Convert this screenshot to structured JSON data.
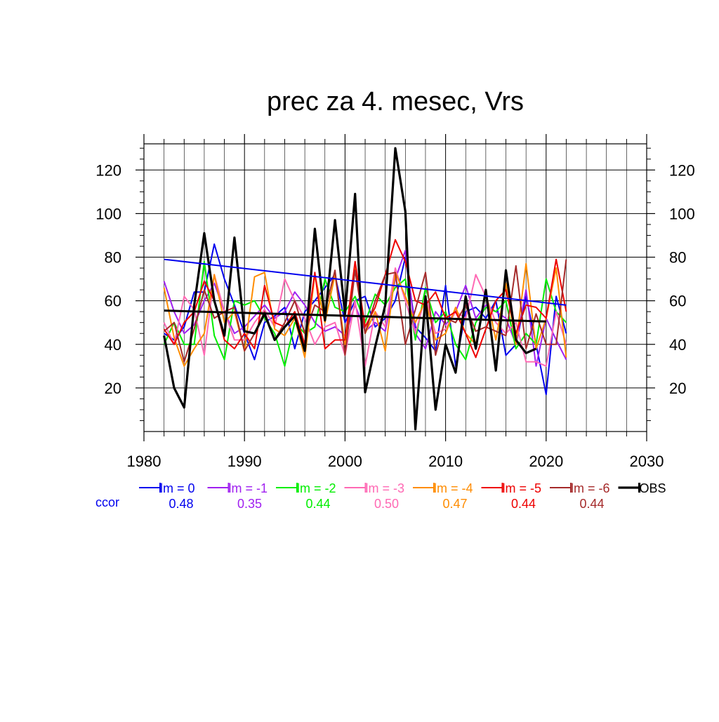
{
  "chart_data": {
    "type": "line",
    "title": "prec za 4. mesec, Vrs",
    "xlim": [
      1980,
      2030
    ],
    "ylim": [
      0,
      132
    ],
    "x_ticks": [
      1980,
      1990,
      2000,
      2010,
      2020,
      2030
    ],
    "y_ticks": [
      20,
      40,
      60,
      80,
      100,
      120
    ],
    "grid": true,
    "legend_position": "bottom",
    "ccor_label": "ccor",
    "series": [
      {
        "name": "lm = 0",
        "color": "#0000ee",
        "ccor": "0.48",
        "x": [
          1982,
          1983,
          1984,
          1985,
          1986,
          1987,
          1988,
          1989,
          1990,
          1991,
          1992,
          1993,
          1994,
          1995,
          1996,
          1997,
          1998,
          1999,
          2000,
          2001,
          2002,
          2003,
          2004,
          2005,
          2006,
          2007,
          2008,
          2009,
          2010,
          2011,
          2012,
          2013,
          2014,
          2015,
          2016,
          2017,
          2018,
          2019,
          2020,
          2021,
          2022
        ],
        "values": [
          45,
          42,
          48,
          64,
          64,
          86,
          70,
          58,
          45,
          33,
          50,
          53,
          57,
          38,
          55,
          60,
          66,
          72,
          50,
          60,
          62,
          48,
          52,
          60,
          80,
          48,
          43,
          37,
          67,
          30,
          55,
          57,
          52,
          60,
          35,
          40,
          62,
          40,
          17,
          62,
          45
        ]
      },
      {
        "name": "lm = -1",
        "color": "#a020f0",
        "ccor": "0.35",
        "x": [
          1982,
          1983,
          1984,
          1985,
          1986,
          1987,
          1988,
          1989,
          1990,
          1991,
          1992,
          1993,
          1994,
          1995,
          1996,
          1997,
          1998,
          1999,
          2000,
          2001,
          2002,
          2003,
          2004,
          2005,
          2006,
          2007,
          2008,
          2009,
          2010,
          2011,
          2012,
          2013,
          2014,
          2015,
          2016,
          2017,
          2018,
          2019,
          2020,
          2021,
          2022
        ],
        "values": [
          69,
          55,
          45,
          49,
          60,
          68,
          55,
          45,
          48,
          53,
          58,
          52,
          55,
          64,
          58,
          50,
          46,
          48,
          44,
          58,
          46,
          50,
          46,
          70,
          83,
          45,
          38,
          55,
          49,
          55,
          67,
          52,
          58,
          55,
          52,
          40,
          65,
          30,
          52,
          42,
          33
        ]
      },
      {
        "name": "lm = -2",
        "color": "#00ee00",
        "ccor": "0.44",
        "x": [
          1982,
          1983,
          1984,
          1985,
          1986,
          1987,
          1988,
          1989,
          1990,
          1991,
          1992,
          1993,
          1994,
          1995,
          1996,
          1997,
          1998,
          1999,
          2000,
          2001,
          2002,
          2003,
          2004,
          2005,
          2006,
          2007,
          2008,
          2009,
          2010,
          2011,
          2012,
          2013,
          2014,
          2015,
          2016,
          2017,
          2018,
          2019,
          2020,
          2021,
          2022
        ],
        "values": [
          40,
          50,
          40,
          40,
          78,
          44,
          33,
          60,
          58,
          60,
          52,
          45,
          30,
          50,
          45,
          48,
          70,
          57,
          55,
          62,
          50,
          63,
          58,
          66,
          70,
          42,
          66,
          50,
          55,
          40,
          33,
          50,
          57,
          55,
          60,
          38,
          45,
          40,
          70,
          55,
          50
        ]
      },
      {
        "name": "lm = -3",
        "color": "#ff69b4",
        "ccor": "0.50",
        "x": [
          1982,
          1983,
          1984,
          1985,
          1986,
          1987,
          1988,
          1989,
          1990,
          1991,
          1992,
          1993,
          1994,
          1995,
          1996,
          1997,
          1998,
          1999,
          2000,
          2001,
          2002,
          2003,
          2004,
          2005,
          2006,
          2007,
          2008,
          2009,
          2010,
          2011,
          2012,
          2013,
          2014,
          2015,
          2016,
          2017,
          2018,
          2019,
          2020,
          2021,
          2022
        ],
        "values": [
          50,
          40,
          62,
          56,
          35,
          72,
          55,
          42,
          42,
          50,
          56,
          48,
          70,
          60,
          52,
          40,
          48,
          50,
          35,
          60,
          30,
          55,
          48,
          75,
          60,
          45,
          62,
          45,
          47,
          55,
          52,
          72,
          62,
          50,
          45,
          50,
          32,
          32,
          30,
          55,
          40
        ]
      },
      {
        "name": "lm = -4",
        "color": "#ff8c00",
        "ccor": "0.47",
        "x": [
          1982,
          1983,
          1984,
          1985,
          1986,
          1987,
          1988,
          1989,
          1990,
          1991,
          1992,
          1993,
          1994,
          1995,
          1996,
          1997,
          1998,
          1999,
          2000,
          2001,
          2002,
          2003,
          2004,
          2005,
          2006,
          2007,
          2008,
          2009,
          2010,
          2011,
          2012,
          2013,
          2014,
          2015,
          2016,
          2017,
          2018,
          2019,
          2020,
          2021,
          2022
        ],
        "values": [
          66,
          43,
          30,
          38,
          45,
          72,
          50,
          55,
          37,
          71,
          73,
          47,
          44,
          52,
          34,
          72,
          50,
          72,
          40,
          75,
          45,
          55,
          37,
          73,
          62,
          50,
          60,
          42,
          45,
          57,
          45,
          40,
          64,
          42,
          68,
          40,
          77,
          38,
          52,
          75,
          34
        ]
      },
      {
        "name": "lm = -5",
        "color": "#ee0000",
        "ccor": "0.44",
        "x": [
          1982,
          1983,
          1984,
          1985,
          1986,
          1987,
          1988,
          1989,
          1990,
          1991,
          1992,
          1993,
          1994,
          1995,
          1996,
          1997,
          1998,
          1999,
          2000,
          2001,
          2002,
          2003,
          2004,
          2005,
          2006,
          2007,
          2008,
          2009,
          2010,
          2011,
          2012,
          2013,
          2014,
          2015,
          2016,
          2017,
          2018,
          2019,
          2020,
          2021,
          2022
        ],
        "values": [
          47,
          40,
          50,
          55,
          69,
          60,
          42,
          38,
          45,
          38,
          67,
          50,
          48,
          55,
          40,
          73,
          38,
          42,
          42,
          78,
          48,
          57,
          72,
          88,
          78,
          60,
          58,
          64,
          52,
          55,
          45,
          34,
          47,
          60,
          65,
          45,
          58,
          57,
          52,
          79,
          55
        ]
      },
      {
        "name": "lm = -6",
        "color": "#a52a2a",
        "ccor": "0.44",
        "x": [
          1982,
          1983,
          1984,
          1985,
          1986,
          1987,
          1988,
          1989,
          1990,
          1991,
          1992,
          1993,
          1994,
          1995,
          1996,
          1997,
          1998,
          1999,
          2000,
          2001,
          2002,
          2003,
          2004,
          2005,
          2006,
          2007,
          2008,
          2009,
          2010,
          2011,
          2012,
          2013,
          2014,
          2015,
          2016,
          2017,
          2018,
          2019,
          2020,
          2021,
          2022
        ],
        "values": [
          46,
          50,
          32,
          47,
          65,
          52,
          55,
          57,
          37,
          45,
          55,
          42,
          50,
          60,
          45,
          58,
          55,
          74,
          35,
          74,
          45,
          60,
          72,
          73,
          40,
          56,
          73,
          35,
          52,
          50,
          58,
          46,
          48,
          46,
          44,
          76,
          38,
          54,
          40,
          40,
          79
        ]
      },
      {
        "name": "OBS",
        "color": "#000000",
        "ccor": "",
        "thick": true,
        "x": [
          1982,
          1983,
          1984,
          1985,
          1986,
          1987,
          1988,
          1989,
          1990,
          1991,
          1992,
          1993,
          1994,
          1995,
          1996,
          1997,
          1998,
          1999,
          2000,
          2001,
          2002,
          2003,
          2004,
          2005,
          2006,
          2007,
          2008,
          2009,
          2010,
          2011,
          2012,
          2013,
          2014,
          2015,
          2016,
          2017,
          2018,
          2019
        ],
        "values": [
          44,
          20,
          11,
          58,
          91,
          60,
          44,
          89,
          46,
          45,
          54,
          42,
          48,
          53,
          37,
          93,
          51,
          97,
          54,
          109,
          18,
          39,
          58,
          130,
          101,
          1,
          62,
          10,
          40,
          27,
          62,
          38,
          65,
          28,
          74,
          42,
          36,
          38
        ]
      }
    ],
    "trend_lines": [
      {
        "name": "lm = 0 trend",
        "color": "#0000ee",
        "x": [
          1982,
          2022
        ],
        "values": [
          79,
          58
        ]
      },
      {
        "name": "OBS trend",
        "color": "#000000",
        "x": [
          1982,
          2020
        ],
        "values": [
          55.5,
          50.5
        ]
      }
    ]
  }
}
